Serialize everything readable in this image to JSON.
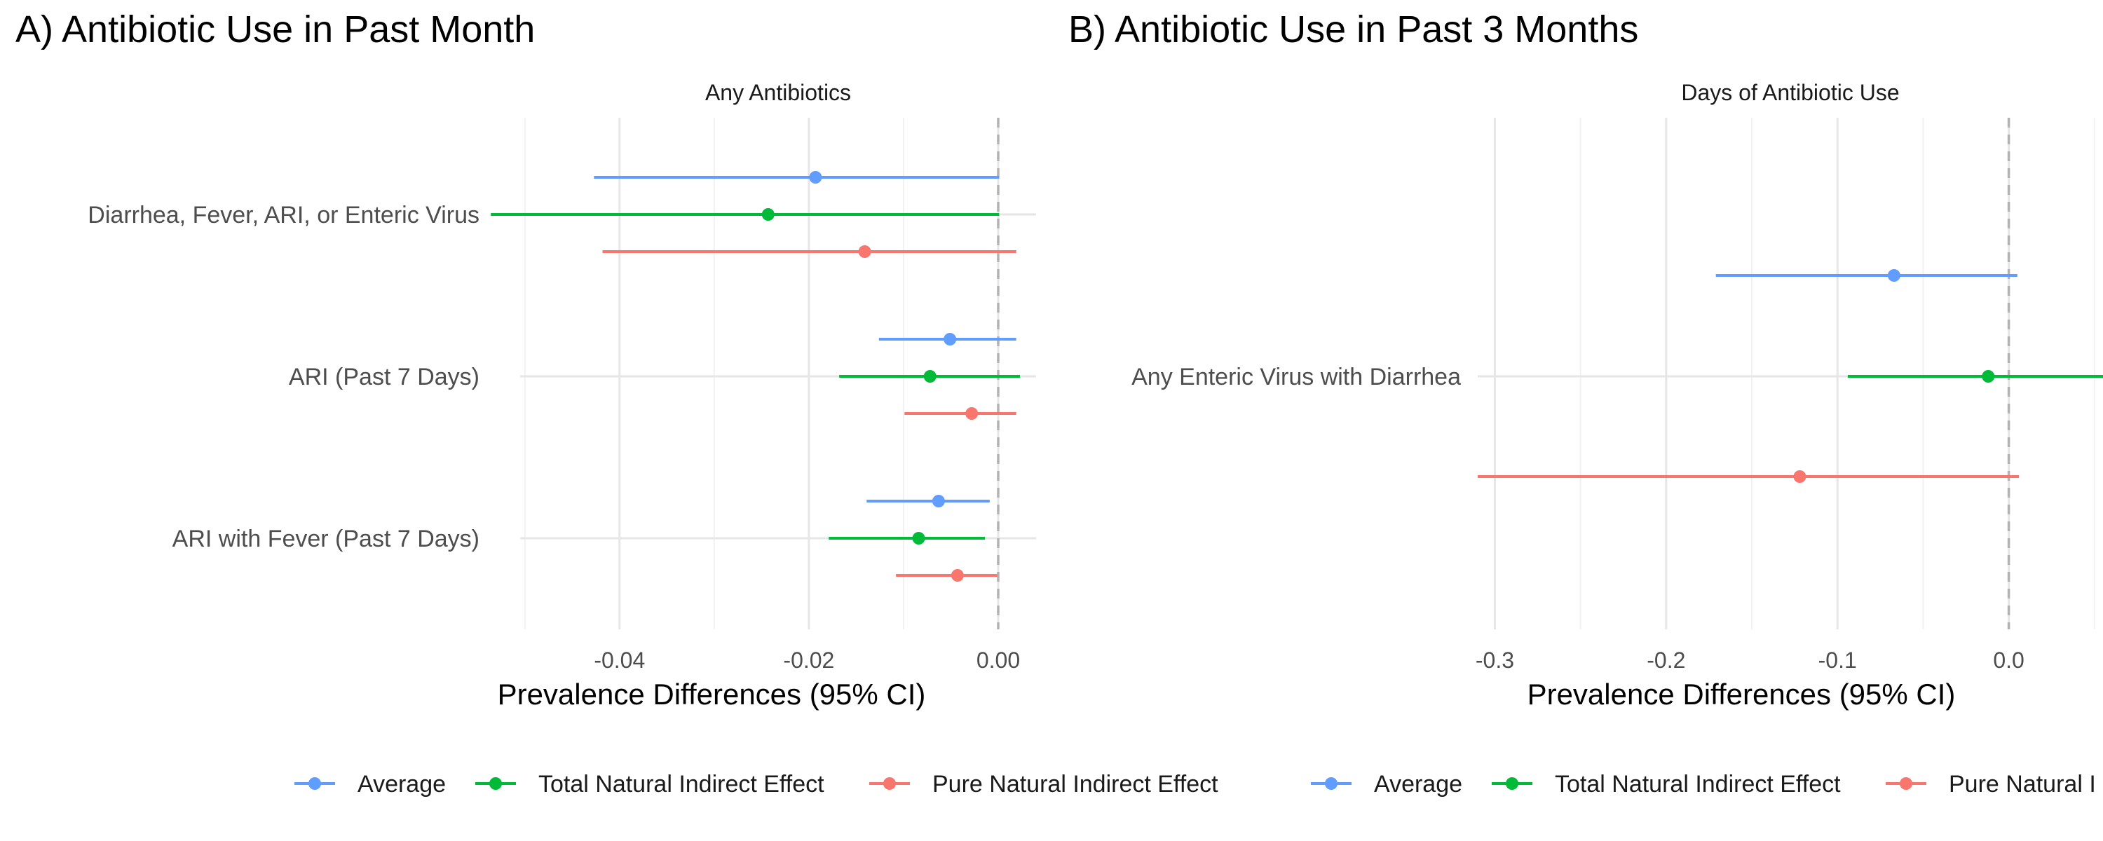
{
  "chart_data": [
    {
      "type": "forest",
      "title": "A) Antibiotic Use in Past Month",
      "facet": "Any Antibiotics",
      "xlabel": "Prevalence Differences (95% CI)",
      "xlim": [
        -0.0505,
        0.004
      ],
      "xticks": [
        -0.04,
        -0.02,
        0.0
      ],
      "xtick_labels": [
        "-0.04",
        "-0.02",
        "0.00"
      ],
      "reference_line": 0,
      "categories": [
        "Diarrhea, Fever, ARI, or Enteric Virus",
        "ARI (Past 7 Days)",
        "ARI with Fever (Past 7 Days)"
      ],
      "series": [
        {
          "name": "Average",
          "color": "#619CFF",
          "points": [
            {
              "est": -0.0193,
              "lo": -0.0427,
              "hi": 0.0001
            },
            {
              "est": -0.0051,
              "lo": -0.0126,
              "hi": 0.0019
            },
            {
              "est": -0.0063,
              "lo": -0.0139,
              "hi": -0.0009
            }
          ]
        },
        {
          "name": "Total Natural Indirect Effect",
          "color": "#00BA38",
          "points": [
            {
              "est": -0.0243,
              "lo": -0.0536,
              "hi": 0.0001
            },
            {
              "est": -0.0072,
              "lo": -0.0168,
              "hi": 0.0023
            },
            {
              "est": -0.0084,
              "lo": -0.0179,
              "hi": -0.0014
            }
          ]
        },
        {
          "name": "Pure Natural Indirect Effect",
          "color": "#F8766D",
          "points": [
            {
              "est": -0.0141,
              "lo": -0.0418,
              "hi": 0.0019
            },
            {
              "est": -0.0028,
              "lo": -0.0099,
              "hi": 0.0019
            },
            {
              "est": -0.0043,
              "lo": -0.0108,
              "hi": -0.0001
            }
          ]
        }
      ],
      "legend": [
        "Average",
        "Total Natural Indirect Effect",
        "Pure Natural Indirect Effect"
      ]
    },
    {
      "type": "forest",
      "title": "B) Antibiotic Use in Past 3 Months",
      "facet": "Days of Antibiotic Use",
      "xlabel": "Prevalence Differences (95% CI)",
      "xlim": [
        -0.31,
        0.055
      ],
      "xticks": [
        -0.3,
        -0.2,
        -0.1,
        0.0
      ],
      "xtick_labels": [
        "-0.3",
        "-0.2",
        "-0.1",
        "0.0"
      ],
      "reference_line": 0,
      "categories": [
        "Any Enteric Virus with Diarrhea"
      ],
      "series": [
        {
          "name": "Average",
          "color": "#619CFF",
          "points": [
            {
              "est": -0.067,
              "lo": -0.171,
              "hi": 0.005
            }
          ]
        },
        {
          "name": "Total Natural Indirect Effect",
          "color": "#00BA38",
          "points": [
            {
              "est": -0.012,
              "lo": -0.094,
              "hi": 0.062
            }
          ]
        },
        {
          "name": "Pure Natural Indirect Effect",
          "color": "#F8766D",
          "points": [
            {
              "est": -0.122,
              "lo": -0.31,
              "hi": 0.006
            }
          ]
        }
      ],
      "legend": [
        "Average",
        "Total Natural Indirect Effect",
        "Pure Natural I"
      ]
    }
  ]
}
